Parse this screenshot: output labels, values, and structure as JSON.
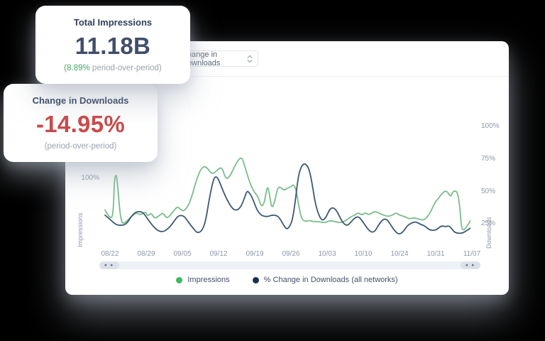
{
  "background_color": "#000000",
  "cards": {
    "impressions": {
      "title": "Total Impressions",
      "value": "11.18B",
      "delta": "(8.89%",
      "delta_suffix": " period-over-period)",
      "delta_color": "#3fa965"
    },
    "downloads": {
      "title": "Change in Downloads",
      "value": "-14.95%",
      "subtitle": "(period-over-period)",
      "value_color": "#c94a4a"
    }
  },
  "panel": {
    "dropdown": {
      "value": "Change in Downloads"
    },
    "scrollbar": {
      "left_arrows": "◂ ▸",
      "right_arrows": "◂ ▸"
    }
  },
  "chart_data": {
    "type": "line",
    "x_ticks": [
      "08/22",
      "08/29",
      "09/05",
      "09/12",
      "09/19",
      "09/26",
      "10/03",
      "10/10",
      "10/24",
      "10/31",
      "11/07"
    ],
    "left_axis": {
      "title": "Impressions",
      "ticks": [
        "100%"
      ]
    },
    "right_axis": {
      "title": "Downloads",
      "ticks": [
        "100%",
        "75%",
        "50%",
        "25%"
      ]
    },
    "ylim_right_percent": [
      -20,
      112
    ],
    "grid": "off",
    "legend_position": "bottom-center",
    "series": [
      {
        "id": "impressions",
        "legend_label": "Impressions",
        "color": "#79bd8a",
        "dot_color": "#3dba5e",
        "axis": "left",
        "points": [
          [
            5,
            9
          ],
          [
            9,
            5
          ],
          [
            15,
            2
          ],
          [
            17,
            12
          ],
          [
            18,
            30
          ],
          [
            20,
            37
          ],
          [
            22,
            33
          ],
          [
            24,
            20
          ],
          [
            26,
            7
          ],
          [
            29,
            -2
          ],
          [
            35,
            0
          ],
          [
            42,
            4
          ],
          [
            49,
            7
          ],
          [
            55,
            5
          ],
          [
            62,
            8
          ],
          [
            65,
            4
          ],
          [
            70,
            7
          ],
          [
            75,
            2
          ],
          [
            82,
            5
          ],
          [
            87,
            7
          ],
          [
            92,
            2
          ],
          [
            100,
            7
          ],
          [
            107,
            12
          ],
          [
            112,
            9
          ],
          [
            117,
            8
          ],
          [
            125,
            15
          ],
          [
            132,
            29
          ],
          [
            139,
            40
          ],
          [
            145,
            43
          ],
          [
            150,
            41
          ],
          [
            155,
            37
          ],
          [
            160,
            38
          ],
          [
            165,
            41
          ],
          [
            170,
            42
          ],
          [
            175,
            33
          ],
          [
            180,
            34
          ],
          [
            187,
            42
          ],
          [
            193,
            48
          ],
          [
            198,
            50
          ],
          [
            203,
            41
          ],
          [
            209,
            30
          ],
          [
            215,
            23
          ],
          [
            220,
            20
          ],
          [
            225,
            12
          ],
          [
            229,
            13
          ],
          [
            234,
            29
          ],
          [
            237,
            20
          ],
          [
            240,
            10
          ],
          [
            244,
            15
          ],
          [
            248,
            26
          ],
          [
            252,
            27
          ],
          [
            257,
            24
          ],
          [
            262,
            26
          ],
          [
            267,
            27
          ],
          [
            271,
            29
          ],
          [
            275,
            23
          ],
          [
            278,
            12
          ],
          [
            282,
            2
          ],
          [
            287,
            0
          ],
          [
            293,
            1
          ],
          [
            299,
            0
          ],
          [
            307,
            0
          ],
          [
            315,
            -1
          ],
          [
            322,
            1
          ],
          [
            329,
            0
          ],
          [
            337,
            -1
          ],
          [
            345,
            1
          ],
          [
            352,
            4
          ],
          [
            357,
            5
          ],
          [
            362,
            7
          ],
          [
            367,
            5
          ],
          [
            372,
            7
          ],
          [
            377,
            5
          ],
          [
            384,
            8
          ],
          [
            390,
            7
          ],
          [
            397,
            5
          ],
          [
            404,
            4
          ],
          [
            410,
            5
          ],
          [
            415,
            7
          ],
          [
            420,
            5
          ],
          [
            427,
            4
          ],
          [
            434,
            2
          ],
          [
            440,
            3
          ],
          [
            447,
            2
          ],
          [
            454,
            1
          ],
          [
            460,
            4
          ],
          [
            465,
            9
          ],
          [
            470,
            15
          ],
          [
            475,
            18
          ],
          [
            480,
            22
          ],
          [
            485,
            24
          ],
          [
            489,
            22
          ],
          [
            492,
            19
          ],
          [
            495,
            23
          ],
          [
            499,
            24
          ],
          [
            502,
            22
          ],
          [
            505,
            12
          ],
          [
            507,
            -4
          ],
          [
            510,
            -7
          ],
          [
            513,
            -5
          ],
          [
            517,
            -2
          ],
          [
            520,
            1
          ]
        ]
      },
      {
        "id": "pct-change-downloads",
        "legend_label": "% Change in Downloads (all networks)",
        "color": "#3c5872",
        "dot_color": "#16324f",
        "axis": "right",
        "points": [
          [
            5,
            5
          ],
          [
            12,
            2
          ],
          [
            19,
            -2
          ],
          [
            27,
            -3
          ],
          [
            35,
            -2
          ],
          [
            42,
            4
          ],
          [
            47,
            7
          ],
          [
            53,
            8
          ],
          [
            59,
            7
          ],
          [
            65,
            2
          ],
          [
            72,
            -3
          ],
          [
            79,
            -7
          ],
          [
            87,
            -8
          ],
          [
            95,
            -5
          ],
          [
            102,
            0
          ],
          [
            107,
            4
          ],
          [
            112,
            5
          ],
          [
            117,
            4
          ],
          [
            122,
            0
          ],
          [
            129,
            -5
          ],
          [
            135,
            -9
          ],
          [
            142,
            -7
          ],
          [
            147,
            1
          ],
          [
            152,
            18
          ],
          [
            157,
            31
          ],
          [
            160,
            35
          ],
          [
            164,
            34
          ],
          [
            169,
            27
          ],
          [
            175,
            19
          ],
          [
            182,
            12
          ],
          [
            187,
            9
          ],
          [
            192,
            9
          ],
          [
            197,
            12
          ],
          [
            202,
            19
          ],
          [
            205,
            24
          ],
          [
            209,
            22
          ],
          [
            213,
            18
          ],
          [
            219,
            9
          ],
          [
            225,
            5
          ],
          [
            230,
            4
          ],
          [
            235,
            4
          ],
          [
            240,
            5
          ],
          [
            245,
            5
          ],
          [
            249,
            4
          ],
          [
            253,
            1
          ],
          [
            257,
            -3
          ],
          [
            261,
            -6
          ],
          [
            265,
            -4
          ],
          [
            269,
            1
          ],
          [
            273,
            15
          ],
          [
            277,
            34
          ],
          [
            281,
            42
          ],
          [
            285,
            45
          ],
          [
            289,
            44
          ],
          [
            293,
            40
          ],
          [
            297,
            29
          ],
          [
            301,
            15
          ],
          [
            305,
            7
          ],
          [
            309,
            2
          ],
          [
            313,
            1
          ],
          [
            317,
            4
          ],
          [
            321,
            9
          ],
          [
            325,
            11
          ],
          [
            329,
            10
          ],
          [
            333,
            7
          ],
          [
            337,
            2
          ],
          [
            342,
            -2
          ],
          [
            347,
            -3
          ],
          [
            352,
            0
          ],
          [
            357,
            3
          ],
          [
            362,
            4
          ],
          [
            367,
            1
          ],
          [
            373,
            -4
          ],
          [
            379,
            -8
          ],
          [
            385,
            -8
          ],
          [
            391,
            -2
          ],
          [
            397,
            2
          ],
          [
            402,
            2
          ],
          [
            407,
            -2
          ],
          [
            413,
            -7
          ],
          [
            419,
            -10
          ],
          [
            425,
            -8
          ],
          [
            431,
            -3
          ],
          [
            437,
            -1
          ],
          [
            443,
            0
          ],
          [
            449,
            -2
          ],
          [
            455,
            -3
          ],
          [
            461,
            -6
          ],
          [
            467,
            -7
          ],
          [
            473,
            -6
          ],
          [
            479,
            -3
          ],
          [
            485,
            -4
          ],
          [
            489,
            -3
          ],
          [
            493,
            -5
          ],
          [
            497,
            -8
          ],
          [
            502,
            -9
          ],
          [
            507,
            -9
          ],
          [
            512,
            -8
          ],
          [
            517,
            -6
          ],
          [
            520,
            -5
          ]
        ]
      }
    ]
  }
}
